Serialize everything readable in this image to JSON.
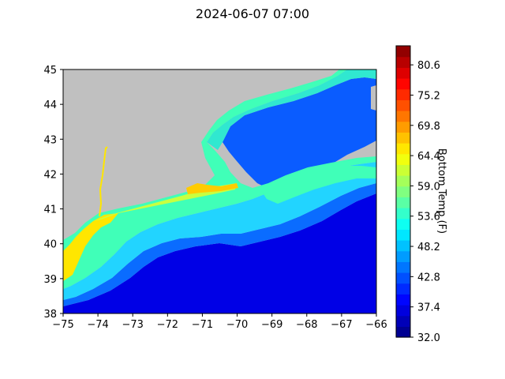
{
  "title": "2024-06-07 07:00",
  "map": {
    "lon_ticks": [
      "−75",
      "−74",
      "−73",
      "−72",
      "−71",
      "−70",
      "−69",
      "−68",
      "−67",
      "−66"
    ],
    "lat_ticks": [
      "45",
      "44",
      "43",
      "42",
      "41",
      "40",
      "39",
      "38"
    ],
    "xlim": [
      -75,
      -66
    ],
    "ylim": [
      38,
      45
    ],
    "land_color": "#c0c0c0"
  },
  "colorbar": {
    "label": "Bottom Temp (F)",
    "tick_labels": [
      "80.6",
      "75.2",
      "69.8",
      "64.4",
      "59.0",
      "53.6",
      "48.2",
      "42.8",
      "37.4",
      "32.0"
    ],
    "range": [
      32.0,
      84.0
    ],
    "colormap": "jet",
    "steps": 27
  }
}
